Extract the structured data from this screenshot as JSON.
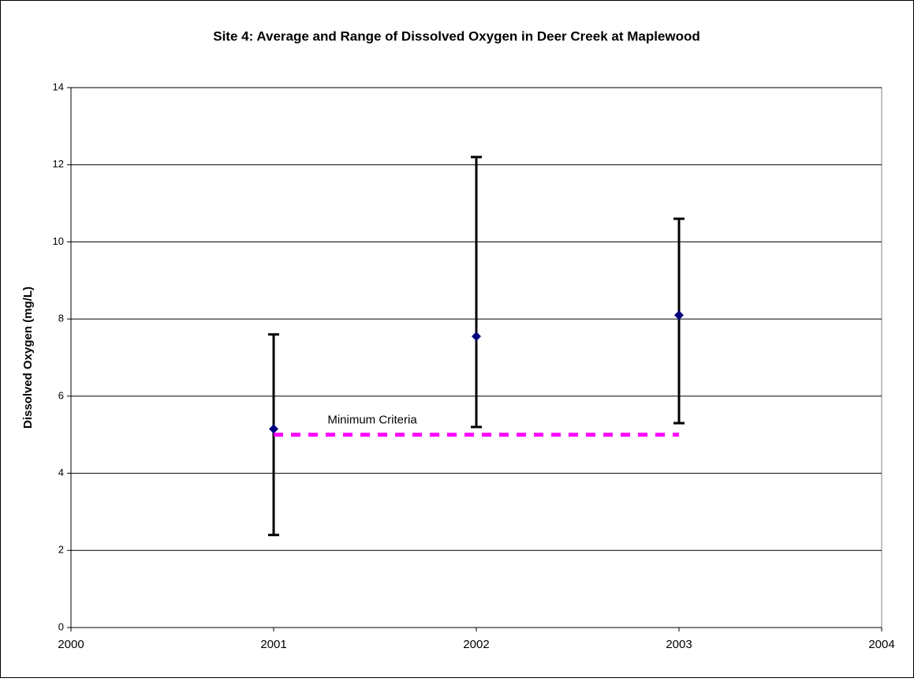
{
  "chart_data": {
    "type": "scatter",
    "title": "Site 4: Average and Range of Dissolved Oxygen in Deer Creek at Maplewood",
    "y_label": "Dissolved Oxygen (mg/L)",
    "xlim": [
      2000,
      2004
    ],
    "xticks": [
      2000,
      2001,
      2002,
      2003,
      2004
    ],
    "ylim": [
      0,
      14
    ],
    "yticks": [
      0,
      2,
      4,
      6,
      8,
      10,
      12,
      14
    ],
    "grid": true,
    "series": [
      {
        "color": "#000080",
        "error_color": "#000000",
        "x": [
          2001,
          2002,
          2003
        ],
        "values": [
          5.15,
          7.55,
          8.1
        ],
        "low": [
          2.4,
          5.2,
          5.3
        ],
        "high": [
          7.6,
          12.2,
          10.6
        ]
      },
      {
        "name": "Minimum Criteria",
        "color": "#ff00ff",
        "dashed": true,
        "x": [
          2001,
          2003
        ],
        "values": [
          5,
          5
        ]
      }
    ]
  }
}
